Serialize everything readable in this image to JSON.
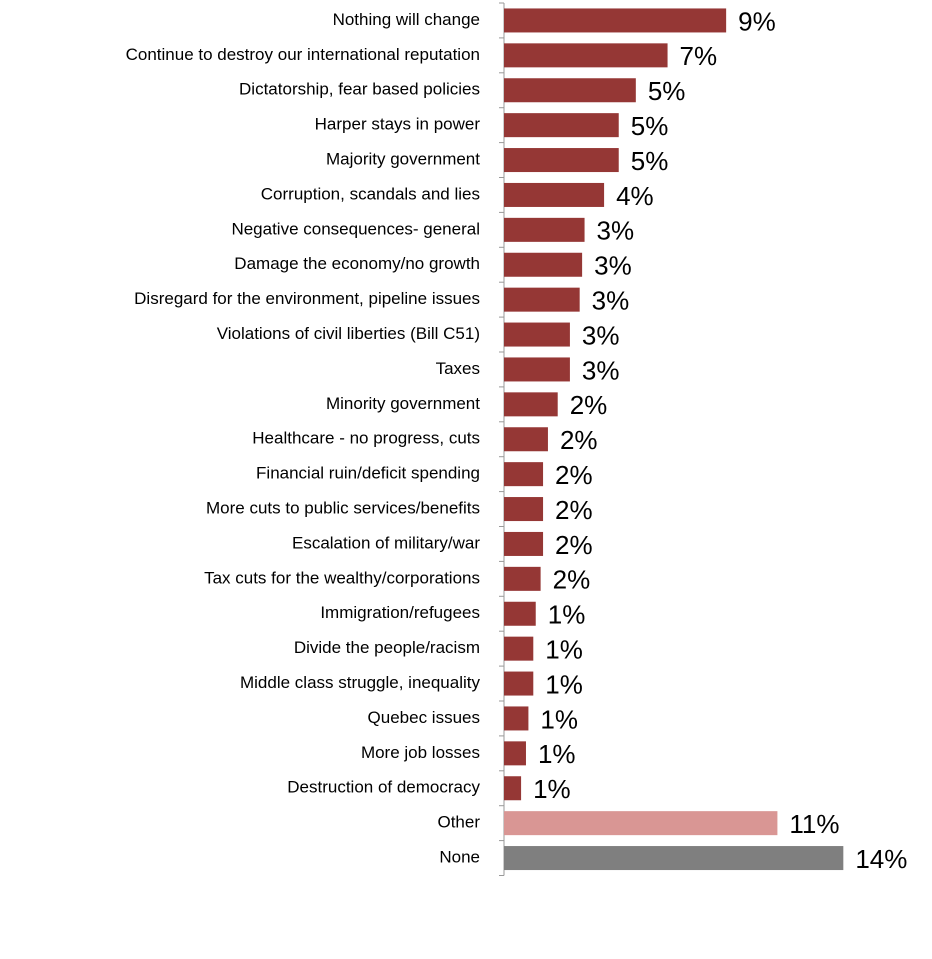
{
  "chart_data": {
    "type": "bar",
    "orientation": "horizontal",
    "categories": [
      "Nothing will change",
      "Continue to destroy our international reputation",
      "Dictatorship, fear based policies",
      "Harper stays in power",
      "Majority government",
      "Corruption, scandals and lies",
      "Negative consequences- general",
      "Damage the economy/no growth",
      "Disregard for the environment, pipeline issues",
      "Violations of civil liberties (Bill C51)",
      "Taxes",
      "Minority government",
      "Healthcare - no progress, cuts",
      "Financial ruin/deficit spending",
      "More cuts to public services/benefits",
      "Escalation of military/war",
      "Tax cuts for the wealthy/corporations",
      "Immigration/refugees",
      "Divide the people/racism",
      "Middle class struggle, inequality",
      "Quebec issues",
      "More job losses",
      "Destruction of democracy",
      "Other",
      "None"
    ],
    "values": [
      9.1,
      6.7,
      5.4,
      4.7,
      4.7,
      4.1,
      3.3,
      3.2,
      3.1,
      2.7,
      2.7,
      2.2,
      1.8,
      1.6,
      1.6,
      1.6,
      1.5,
      1.3,
      1.2,
      1.2,
      1.0,
      0.9,
      0.7,
      11.2,
      13.9
    ],
    "value_labels": [
      "9%",
      "7%",
      "5%",
      "5%",
      "5%",
      "4%",
      "3%",
      "3%",
      "3%",
      "3%",
      "3%",
      "2%",
      "2%",
      "2%",
      "2%",
      "2%",
      "2%",
      "1%",
      "1%",
      "1%",
      "1%",
      "1%",
      "1%",
      "11%",
      "14%"
    ],
    "colors": [
      "#953735",
      "#953735",
      "#953735",
      "#953735",
      "#953735",
      "#953735",
      "#953735",
      "#953735",
      "#953735",
      "#953735",
      "#953735",
      "#953735",
      "#953735",
      "#953735",
      "#953735",
      "#953735",
      "#953735",
      "#953735",
      "#953735",
      "#953735",
      "#953735",
      "#953735",
      "#953735",
      "#d99694",
      "#7f7f7f"
    ],
    "xlim": [
      0,
      17
    ]
  }
}
